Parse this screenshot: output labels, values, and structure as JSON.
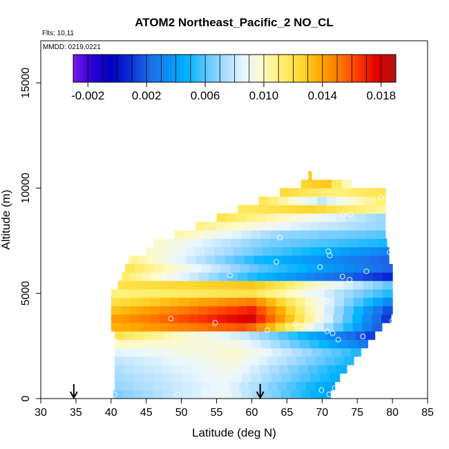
{
  "chart_data": {
    "type": "heatmap",
    "title": "ATOM2 Northeast_Pacific_2 NO_CL",
    "subtitles": [
      "Flts: 10,11",
      "MMDD: 0219,0221"
    ],
    "xlabel": "Latitude (deg N)",
    "ylabel": "Altitude (m)",
    "xlim": [
      30,
      85
    ],
    "ylim": [
      0,
      17000
    ],
    "xticks": [
      "30",
      "35",
      "40",
      "45",
      "50",
      "55",
      "60",
      "65",
      "70",
      "75",
      "80",
      "85"
    ],
    "yticks": [
      "0",
      "5000",
      "10000",
      "15000"
    ],
    "colorbar": {
      "min": -0.003,
      "max": 0.019,
      "ticks": [
        "-0.002",
        "0.002",
        "0.006",
        "0.010",
        "0.014",
        "0.018"
      ],
      "colors": [
        "#7b19e6",
        "#2a00d0",
        "#0000c0",
        "#0a2fd8",
        "#1d6ae8",
        "#0b8ef5",
        "#00b4ff",
        "#5cc6ff",
        "#a8dcff",
        "#e8f6ff",
        "#fff9c8",
        "#ffef70",
        "#ffd830",
        "#ffa800",
        "#ff7a00",
        "#ff3a00",
        "#e00000",
        "#b31414"
      ]
    },
    "arrows_latitude": [
      34.7,
      61.2
    ],
    "layers": [
      {
        "alt": 200,
        "lat": [
          40.3,
          71.2
        ],
        "value": [
          0.0065,
          0.009,
          0.004
        ]
      },
      {
        "alt": 600,
        "lat": [
          40.5,
          71.8
        ],
        "value": [
          0.007,
          0.0088,
          0.004
        ]
      },
      {
        "alt": 1000,
        "lat": [
          40.5,
          72.5
        ],
        "value": [
          0.0072,
          0.009,
          0.0045
        ]
      },
      {
        "alt": 1400,
        "lat": [
          40.5,
          73.5
        ],
        "value": [
          0.0075,
          0.0092,
          0.0045
        ]
      },
      {
        "alt": 1800,
        "lat": [
          40.5,
          74.5
        ],
        "value": [
          0.0078,
          0.0095,
          0.005
        ]
      },
      {
        "alt": 2200,
        "lat": [
          40.5,
          75.5
        ],
        "value": [
          0.0085,
          0.0098,
          0.005
        ]
      },
      {
        "alt": 2600,
        "lat": [
          40.5,
          76.5
        ],
        "value": [
          0.01,
          0.0092,
          0.0025
        ]
      },
      {
        "alt": 3000,
        "lat": [
          40.5,
          77.5
        ],
        "value": [
          0.012,
          0.008,
          0.001
        ]
      },
      {
        "alt": 3400,
        "lat": [
          40.0,
          78.5
        ],
        "value": [
          0.0135,
          0.016,
          0.0015
        ]
      },
      {
        "alt": 3800,
        "lat": [
          40.0,
          79.8
        ],
        "value": [
          0.014,
          0.018,
          0.0005
        ]
      },
      {
        "alt": 4200,
        "lat": [
          40.0,
          80.0
        ],
        "value": [
          0.013,
          0.017,
          0.001
        ]
      },
      {
        "alt": 4600,
        "lat": [
          40.0,
          80.0
        ],
        "value": [
          0.012,
          0.015,
          0.003
        ]
      },
      {
        "alt": 5000,
        "lat": [
          40.0,
          80.0
        ],
        "value": [
          0.011,
          0.012,
          0.005
        ]
      },
      {
        "alt": 5400,
        "lat": [
          41.0,
          80.0
        ],
        "value": [
          0.012,
          0.013,
          0.006
        ]
      },
      {
        "alt": 5800,
        "lat": [
          41.5,
          80.0
        ],
        "value": [
          0.0115,
          0.005,
          0.0005
        ]
      },
      {
        "alt": 6200,
        "lat": [
          42.0,
          80.0
        ],
        "value": [
          0.012,
          0.006,
          0.002
        ]
      },
      {
        "alt": 6600,
        "lat": [
          42.5,
          79.5
        ],
        "value": [
          0.011,
          0.005,
          0.002
        ]
      },
      {
        "alt": 7000,
        "lat": [
          45.0,
          79.5
        ],
        "value": [
          0.01,
          0.006,
          0.003
        ]
      },
      {
        "alt": 7400,
        "lat": [
          46.0,
          79.2
        ],
        "value": [
          0.01,
          0.0065,
          0.005
        ]
      },
      {
        "alt": 7800,
        "lat": [
          49.0,
          79.0
        ],
        "value": [
          0.0105,
          0.007,
          0.006
        ]
      },
      {
        "alt": 8200,
        "lat": [
          52.0,
          79.0
        ],
        "value": [
          0.011,
          0.0085,
          0.007
        ]
      },
      {
        "alt": 8600,
        "lat": [
          55.0,
          79.0
        ],
        "value": [
          0.012,
          0.0095,
          0.007
        ]
      },
      {
        "alt": 9000,
        "lat": [
          58.0,
          79.0
        ],
        "value": [
          0.0115,
          0.0125,
          0.0105
        ]
      },
      {
        "alt": 9400,
        "lat": [
          61.0,
          79.0
        ],
        "value": [
          0.012,
          0.008,
          0.0115
        ]
      },
      {
        "alt": 9800,
        "lat": [
          64.0,
          79.0
        ],
        "value": [
          0.0125,
          0.011,
          0.012
        ]
      },
      {
        "alt": 10200,
        "lat": [
          67.0,
          74.2
        ],
        "value": [
          0.0125,
          0.013,
          0.0095
        ]
      },
      {
        "alt": 10600,
        "lat": [
          68.0,
          68.5
        ],
        "value": [
          0.013,
          0.013,
          0.013
        ]
      }
    ],
    "flight_points": [
      [
        40.5,
        200
      ],
      [
        49.5,
        200
      ],
      [
        71.0,
        200
      ],
      [
        71.8,
        500
      ],
      [
        69.9,
        400
      ],
      [
        40.5,
        2750
      ],
      [
        48.5,
        3800
      ],
      [
        54.8,
        3600
      ],
      [
        62.2,
        3250
      ],
      [
        66.2,
        3550
      ],
      [
        70.7,
        3200
      ],
      [
        71.5,
        3100
      ],
      [
        72.3,
        2800
      ],
      [
        75.8,
        2950
      ],
      [
        80.0,
        3700
      ],
      [
        70.7,
        4650
      ],
      [
        47.5,
        5850
      ],
      [
        56.9,
        5850
      ],
      [
        72.9,
        5800
      ],
      [
        73.9,
        5650
      ],
      [
        76.3,
        6050
      ],
      [
        63.5,
        6500
      ],
      [
        69.7,
        6250
      ],
      [
        71.1,
        6800
      ],
      [
        70.9,
        7000
      ],
      [
        42.5,
        6650
      ],
      [
        64.0,
        7650
      ],
      [
        79.6,
        6950
      ],
      [
        73.0,
        8750
      ],
      [
        74.0,
        8750
      ],
      [
        78.4,
        9550
      ],
      [
        67.8,
        10550
      ]
    ]
  }
}
